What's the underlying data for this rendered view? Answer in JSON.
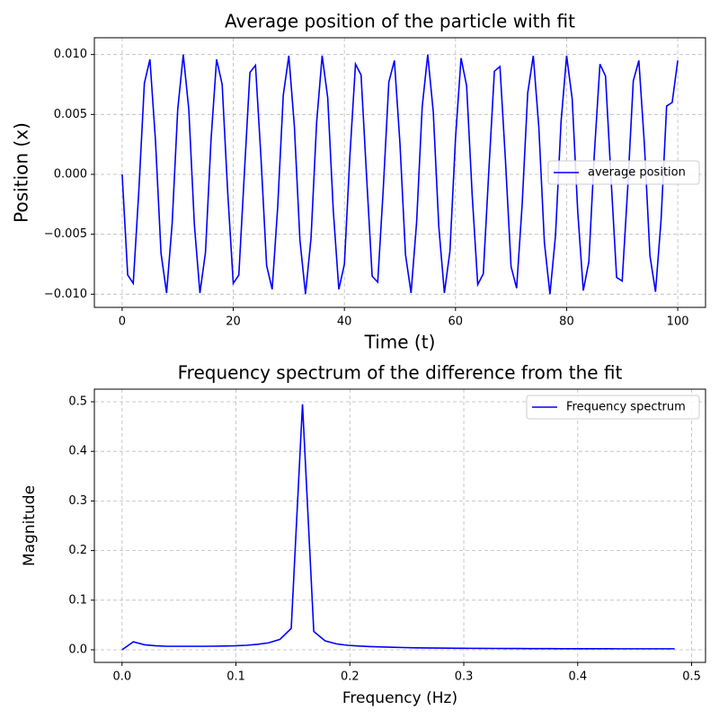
{
  "chart_data": [
    {
      "type": "line",
      "title": "Average position of the particle with fit",
      "xlabel": "Time (t)",
      "ylabel": "Position (x)",
      "x": [
        0,
        1,
        2,
        3,
        4,
        5,
        6,
        7,
        8,
        9,
        10,
        11,
        12,
        13,
        14,
        15,
        16,
        17,
        18,
        19,
        20,
        21,
        22,
        23,
        24,
        25,
        26,
        27,
        28,
        29,
        30,
        31,
        32,
        33,
        34,
        35,
        36,
        37,
        38,
        39,
        40,
        41,
        42,
        43,
        44,
        45,
        46,
        47,
        48,
        49,
        50,
        51,
        52,
        53,
        54,
        55,
        56,
        57,
        58,
        59,
        60,
        61,
        62,
        63,
        64,
        65,
        66,
        67,
        68,
        69,
        70,
        71,
        72,
        73,
        74,
        75,
        76,
        77,
        78,
        79,
        80,
        81,
        82,
        83,
        84,
        85,
        86,
        87,
        88,
        89,
        90,
        91,
        92,
        93,
        94,
        95,
        96,
        97,
        98,
        99,
        100
      ],
      "series": [
        {
          "name": "average position",
          "color": "#0000ff",
          "values": [
            0,
            -0.0084,
            -0.0091,
            -0.0014,
            0.0076,
            0.0096,
            0.0028,
            -0.0066,
            -0.0099,
            -0.0041,
            0.0054,
            0.01,
            0.0054,
            -0.0042,
            -0.0099,
            -0.0065,
            0.0029,
            0.0096,
            0.0075,
            -0.0015,
            -0.0091,
            -0.0084,
            0.0001,
            0.0085,
            0.0091,
            0.0013,
            -0.0076,
            -0.0096,
            -0.0027,
            0.0066,
            0.0099,
            0.004,
            -0.0055,
            -0.01,
            -0.0053,
            0.0043,
            0.0099,
            0.0064,
            -0.003,
            -0.0096,
            -0.0075,
            0.0016,
            0.0092,
            0.0083,
            -0.0002,
            -0.0085,
            -0.009,
            -0.0012,
            0.0077,
            0.0095,
            0.0026,
            -0.0067,
            -0.0099,
            -0.004,
            0.0056,
            0.01,
            0.0052,
            -0.0044,
            -0.0099,
            -0.0064,
            0.003,
            0.0097,
            0.0074,
            -0.0017,
            -0.0092,
            -0.0083,
            0.0003,
            0.0086,
            0.009,
            0.0011,
            -0.0077,
            -0.0095,
            -0.0025,
            0.0068,
            0.0099,
            0.0039,
            -0.0057,
            -0.01,
            -0.0051,
            0.0044,
            0.0099,
            0.0063,
            -0.0031,
            -0.0097,
            -0.0073,
            0.0018,
            0.0092,
            0.0082,
            -0.0004,
            -0.0086,
            -0.0089,
            -0.0011,
            0.0078,
            0.0095,
            0.0025,
            -0.0068,
            -0.0098,
            -0.0038,
            0.0057,
            0.006,
            0.0095
          ]
        }
      ],
      "xlim": [
        -5,
        105
      ],
      "xticks": [
        0,
        20,
        40,
        60,
        80,
        100
      ],
      "ylim": [
        -0.0111,
        0.0114
      ],
      "yticks": [
        {
          "value": -0.01,
          "label": "−0.010"
        },
        {
          "value": -0.005,
          "label": "−0.005"
        },
        {
          "value": 0,
          "label": "0.000"
        },
        {
          "value": 0.005,
          "label": "0.005"
        },
        {
          "value": 0.01,
          "label": "0.010"
        }
      ],
      "grid": true,
      "legend": "center right"
    },
    {
      "type": "line",
      "title": "Frequency spectrum of the difference from the fit",
      "xlabel": "Frequency (Hz)",
      "ylabel": "Magnitude",
      "x": [
        0,
        0.0099,
        0.0198,
        0.0297,
        0.0396,
        0.0495,
        0.0594,
        0.0693,
        0.0792,
        0.0891,
        0.099,
        0.1089,
        0.1188,
        0.1287,
        0.1386,
        0.1485,
        0.1584,
        0.1683,
        0.1782,
        0.1881,
        0.198,
        0.2079,
        0.2178,
        0.2277,
        0.2376,
        0.2475,
        0.2574,
        0.2673,
        0.2772,
        0.2871,
        0.297,
        0.3069,
        0.3168,
        0.3267,
        0.3366,
        0.3465,
        0.3564,
        0.3663,
        0.3762,
        0.3861,
        0.396,
        0.4059,
        0.4158,
        0.4257,
        0.4356,
        0.4455,
        0.4554,
        0.4653,
        0.4752,
        0.4851
      ],
      "series": [
        {
          "name": "Frequency spectrum",
          "color": "#0000ff",
          "values": [
            0,
            0.016,
            0.01,
            0.008,
            0.007,
            0.007,
            0.007,
            0.007,
            0.0072,
            0.0075,
            0.008,
            0.009,
            0.011,
            0.014,
            0.021,
            0.043,
            0.495,
            0.037,
            0.018,
            0.012,
            0.009,
            0.0075,
            0.0065,
            0.0057,
            0.005,
            0.0045,
            0.004,
            0.0037,
            0.0034,
            0.0032,
            0.003,
            0.0029,
            0.0028,
            0.0027,
            0.0026,
            0.0025,
            0.0024,
            0.0023,
            0.0023,
            0.0022,
            0.0022,
            0.0021,
            0.0021,
            0.0021,
            0.002,
            0.002,
            0.002,
            0.002,
            0.002,
            0.002
          ]
        }
      ],
      "xlim": [
        -0.0243,
        0.5122
      ],
      "xticks": [
        {
          "value": 0,
          "label": "0.0"
        },
        {
          "value": 0.1,
          "label": "0.1"
        },
        {
          "value": 0.2,
          "label": "0.2"
        },
        {
          "value": 0.3,
          "label": "0.3"
        },
        {
          "value": 0.4,
          "label": "0.4"
        },
        {
          "value": 0.5,
          "label": "0.5"
        }
      ],
      "ylim": [
        -0.0254,
        0.5254
      ],
      "yticks": [
        {
          "value": 0,
          "label": "0.0"
        },
        {
          "value": 0.1,
          "label": "0.1"
        },
        {
          "value": 0.2,
          "label": "0.2"
        },
        {
          "value": 0.3,
          "label": "0.3"
        },
        {
          "value": 0.4,
          "label": "0.4"
        },
        {
          "value": 0.5,
          "label": "0.5"
        }
      ],
      "grid": true,
      "legend": "upper right"
    }
  ]
}
